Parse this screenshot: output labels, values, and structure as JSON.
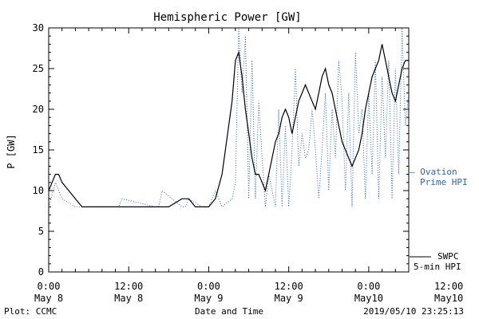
{
  "chart_data": {
    "type": "line",
    "title": "Hemispheric Power [GW]",
    "xlabel": "Date and Time",
    "ylabel": "P [GW]",
    "ylim": [
      0,
      30
    ],
    "xlim": [
      0,
      54
    ],
    "y_ticks": [
      0,
      5,
      10,
      15,
      20,
      25,
      30
    ],
    "y_tick_labels": [
      "0",
      "5",
      "10",
      "15",
      "20",
      "25",
      "30"
    ],
    "x_ticks": [
      0,
      12,
      24,
      36,
      48,
      60
    ],
    "x_tick_labels": [
      [
        "0:00",
        "May 8"
      ],
      [
        "12:00",
        "May 8"
      ],
      [
        "0:00",
        "May 9"
      ],
      [
        "12:00",
        "May 9"
      ],
      [
        "0:00",
        "May10"
      ],
      [
        "12:00",
        "May10"
      ]
    ],
    "grid": false,
    "series": [
      {
        "name": "Ovation Prime HPI",
        "legend_label": [
          "— Ovation",
          "Prime HPI"
        ],
        "color": "#2a63c8",
        "style": "dotted",
        "x": [
          0,
          1.0,
          2.0,
          4.0,
          5.5,
          6.0,
          8.0,
          10.5,
          11.0,
          16.0,
          16.5,
          17.0,
          20.0,
          20.5,
          21.0,
          23.0,
          24.0,
          25.0,
          26.0,
          27.5,
          28.0,
          28.5,
          29.0,
          29.5,
          30.0,
          30.5,
          31.0,
          31.5,
          32.0,
          32.5,
          33.0,
          33.5,
          34.0,
          34.5,
          35.0,
          35.5,
          36.0,
          36.5,
          37.0,
          37.5,
          38.0,
          38.5,
          39.0,
          39.5,
          40.0,
          40.5,
          41.0,
          41.5,
          42.0,
          42.5,
          43.0,
          43.5,
          44.0,
          44.5,
          45.0,
          45.5,
          46.0,
          46.5,
          47.0,
          47.5,
          48.0,
          48.5,
          49.0,
          49.5,
          50.0,
          50.5,
          51.0,
          51.5,
          52.0,
          52.5,
          53.0,
          53.5,
          54.0
        ],
        "y": [
          8,
          11,
          9,
          8,
          8,
          8,
          8,
          8,
          9,
          8,
          8,
          10,
          8,
          8,
          9,
          8,
          8,
          10,
          8,
          9,
          11,
          30,
          22,
          29,
          9,
          26,
          9,
          21,
          14,
          8,
          12,
          10,
          8,
          20,
          8,
          18,
          8,
          15,
          25,
          13,
          17,
          14,
          15,
          20,
          15,
          9,
          15,
          22,
          10,
          20,
          14,
          26,
          21,
          10,
          22,
          8,
          27,
          17,
          20,
          9,
          22,
          12,
          26,
          9,
          24,
          14,
          26,
          9,
          25,
          12,
          30,
          18,
          22
        ]
      },
      {
        "name": "SWPC 5-min HPI",
        "legend_label": [
          "SWPC",
          "5-min HPI"
        ],
        "color": "#000000",
        "style": "solid",
        "x": [
          0,
          0.5,
          1.0,
          1.5,
          2.0,
          3.0,
          4.0,
          5.0,
          6.0,
          8.0,
          10.0,
          12.0,
          14.0,
          16.0,
          18.0,
          20.0,
          21.0,
          22.0,
          24.0,
          25.0,
          26.0,
          27.0,
          27.5,
          28.0,
          28.5,
          29.0,
          29.5,
          30.0,
          30.5,
          31.0,
          31.5,
          32.0,
          32.5,
          33.0,
          33.5,
          34.0,
          34.5,
          35.0,
          35.5,
          36.0,
          36.5,
          37.0,
          37.5,
          38.0,
          38.5,
          39.0,
          39.5,
          40.0,
          40.5,
          41.0,
          41.5,
          42.0,
          42.5,
          43.0,
          43.5,
          44.0,
          44.5,
          45.0,
          45.5,
          46.0,
          46.5,
          47.0,
          47.5,
          48.0,
          48.5,
          49.0,
          49.5,
          50.0,
          50.5,
          51.0,
          51.5,
          52.0,
          52.5,
          53.0,
          53.5,
          54.0
        ],
        "y": [
          10,
          11,
          12,
          12,
          11,
          10,
          9,
          8,
          8,
          8,
          8,
          8,
          8,
          8,
          8,
          9,
          9,
          8,
          8,
          9,
          12,
          18,
          21,
          26,
          27,
          24,
          20,
          17,
          14,
          12,
          12,
          11,
          10,
          12,
          14,
          16,
          17,
          19,
          20,
          19,
          17,
          19,
          21,
          22,
          23,
          22,
          21,
          20,
          22,
          24,
          25,
          23,
          22,
          20,
          18,
          16,
          15,
          14,
          13,
          14,
          15,
          17,
          20,
          22,
          24,
          25,
          26,
          28,
          26,
          24,
          22,
          21,
          23,
          25,
          26,
          26
        ]
      }
    ]
  },
  "footer": {
    "plot_credit": "Plot: CCMC",
    "timestamp": "2019/05/10 23:25:13"
  }
}
